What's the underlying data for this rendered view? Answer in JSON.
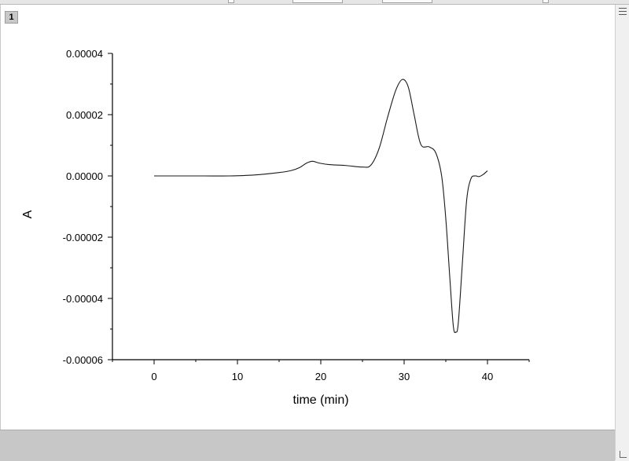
{
  "window": {
    "badge": "1"
  },
  "chart_data": {
    "type": "line",
    "title": "",
    "xlabel": "time (min)",
    "ylabel": "A",
    "xlim": [
      -5,
      45
    ],
    "ylim": [
      -6e-05,
      4e-05
    ],
    "xticks": [
      0,
      10,
      20,
      30,
      40
    ],
    "xtick_labels": [
      "0",
      "10",
      "20",
      "30",
      "40"
    ],
    "yticks": [
      4e-05,
      2e-05,
      0.0,
      -2e-05,
      -4e-05,
      -6e-05
    ],
    "ytick_labels": [
      "0.00004",
      "0.00002",
      "0.00000",
      "-0.00002",
      "-0.00004",
      "-0.00006"
    ],
    "grid": false,
    "legend": "none",
    "line_color": "#1a1a1a",
    "series": [
      {
        "x": [
          0,
          3,
          6,
          9,
          12,
          15,
          16.5,
          17.5,
          18.3,
          19,
          19.8,
          21,
          23,
          25,
          26,
          27,
          28,
          29,
          29.8,
          30.5,
          31.2,
          32,
          33,
          33.8,
          34.5,
          35,
          35.5,
          35.9,
          36.2,
          36.5,
          37,
          37.5,
          38,
          38.5,
          39,
          39.5,
          40
        ],
        "y": [
          0.0,
          0.0,
          0.0,
          0.0,
          3e-07,
          1.1e-06,
          1.8e-06,
          2.8e-06,
          4.2e-06,
          4.8e-06,
          4.2e-06,
          3.7e-06,
          3.4e-06,
          2.9e-06,
          3.5e-06,
          9e-06,
          1.9e-05,
          2.8e-05,
          3.15e-05,
          2.9e-05,
          2e-05,
          1.03e-05,
          9.5e-06,
          7.5e-06,
          0.0,
          -1.4e-05,
          -3.4e-05,
          -4.9e-05,
          -5.1e-05,
          -4.8e-05,
          -2.8e-05,
          -8e-06,
          -1e-06,
          0.0,
          -2e-07,
          5e-07,
          1.7e-06
        ]
      }
    ]
  }
}
